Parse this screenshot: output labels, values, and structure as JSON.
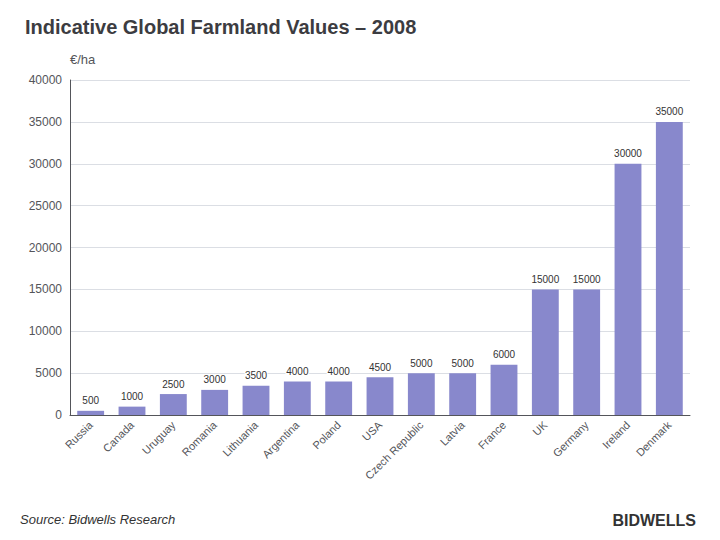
{
  "chart_data": {
    "type": "bar",
    "title": "Indicative Global Farmland Values – 2008",
    "ylabel": "€/ha",
    "categories": [
      "Russia",
      "Canada",
      "Uruguay",
      "Romania",
      "Lithuania",
      "Argentina",
      "Poland",
      "USA",
      "Czech Republic",
      "Latvia",
      "France",
      "UK",
      "Germany",
      "Ireland",
      "Denmark"
    ],
    "values": [
      500,
      1000,
      2500,
      3000,
      3500,
      4000,
      4000,
      4500,
      5000,
      5000,
      6000,
      15000,
      15000,
      30000,
      35000
    ],
    "color": "#8888cc",
    "ylim": [
      0,
      40000
    ],
    "yticks": [
      0,
      5000,
      10000,
      15000,
      20000,
      25000,
      30000,
      35000,
      40000
    ],
    "grid": true,
    "data_labels": true,
    "annotations": [
      "Source: Bidwells Research",
      "BIDWELLS"
    ]
  }
}
